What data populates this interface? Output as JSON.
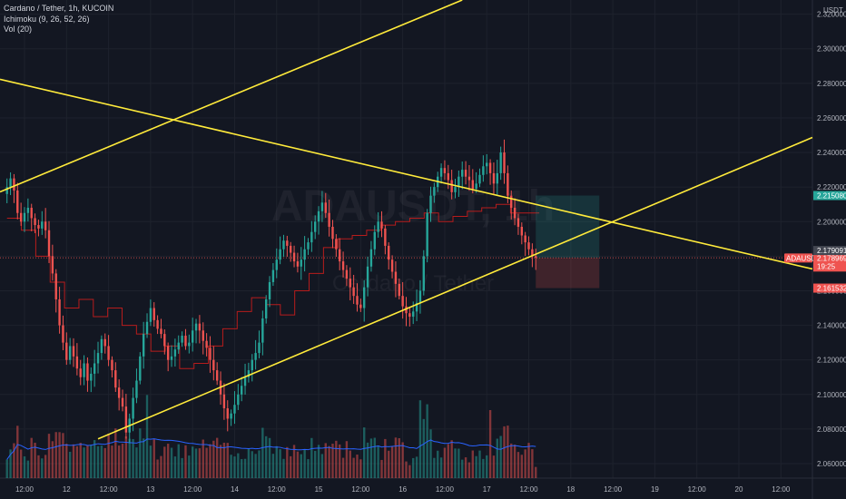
{
  "legend": {
    "title": "Cardano / Tether, 1h, KUCOIN",
    "ichimoku": "Ichimoku (9, 26, 52, 26)",
    "volume": "Vol (20)"
  },
  "watermark": {
    "symbol": "ADAUSDT, 1h",
    "name": "Cardano / Tether"
  },
  "colors": {
    "background": "#131722",
    "up": "#26a69a",
    "down": "#ef5350",
    "trendline": "#ffeb3b",
    "baseline": "#b71c1c",
    "volume_ma": "#2962ff",
    "grid": "#1e222d",
    "axis_text": "#b2b5be"
  },
  "chart_data": {
    "type": "candlestick",
    "symbol": "ADAUSDT",
    "timeframe": "1h",
    "exchange": "KUCOIN",
    "y_axis_unit": "USDT",
    "y_ticks": [
      2.06,
      2.08,
      2.1,
      2.12,
      2.14,
      2.16,
      2.18,
      2.2,
      2.22,
      2.24,
      2.26,
      2.28,
      2.3,
      2.32
    ],
    "y_tick_labels": [
      "2.060000",
      "2.080000",
      "2.100000",
      "2.120000",
      "2.140000",
      "2.160000",
      "2.180000",
      "2.200000",
      "2.220000",
      "2.240000",
      "2.260000",
      "2.280000",
      "2.300000",
      "2.320000"
    ],
    "ylim": [
      2.0516,
      2.3282
    ],
    "x_tick_labels": [
      "12:00",
      "12",
      "12:00",
      "13",
      "12:00",
      "14",
      "12:00",
      "15",
      "12:00",
      "16",
      "12:00",
      "17",
      "12:00",
      "18",
      "12:00",
      "19",
      "12:00",
      "20",
      "12:00"
    ],
    "x_tick_hours": [
      0,
      12,
      24,
      36,
      48,
      60,
      72,
      84,
      96,
      108,
      120,
      132,
      144,
      156,
      168,
      180,
      192,
      204,
      216
    ],
    "xlim_hours": [
      -7,
      225
    ],
    "closes": [
      2.22,
      2.225,
      2.218,
      2.205,
      2.2,
      2.205,
      2.208,
      2.202,
      2.198,
      2.196,
      2.2,
      2.195,
      2.18,
      2.17,
      2.155,
      2.14,
      2.13,
      2.12,
      2.128,
      2.122,
      2.115,
      2.11,
      2.118,
      2.108,
      2.112,
      2.118,
      2.124,
      2.132,
      2.128,
      2.12,
      2.114,
      2.104,
      2.098,
      2.093,
      2.078,
      2.086,
      2.098,
      2.108,
      2.122,
      2.135,
      2.142,
      2.15,
      2.143,
      2.138,
      2.135,
      2.128,
      2.12,
      2.122,
      2.126,
      2.13,
      2.134,
      2.128,
      2.13,
      2.137,
      2.141,
      2.137,
      2.131,
      2.127,
      2.12,
      2.114,
      2.108,
      2.1,
      2.092,
      2.086,
      2.089,
      2.094,
      2.1,
      2.105,
      2.11,
      2.114,
      2.12,
      2.124,
      2.13,
      2.144,
      2.155,
      2.165,
      2.172,
      2.178,
      2.184,
      2.189,
      2.186,
      2.182,
      2.177,
      2.174,
      2.178,
      2.184,
      2.188,
      2.194,
      2.2,
      2.206,
      2.211,
      2.205,
      2.197,
      2.19,
      2.184,
      2.177,
      2.172,
      2.167,
      2.162,
      2.157,
      2.152,
      2.15,
      2.162,
      2.174,
      2.184,
      2.194,
      2.2,
      2.196,
      2.186,
      2.178,
      2.171,
      2.164,
      2.157,
      2.151,
      2.147,
      2.145,
      2.148,
      2.153,
      2.16,
      2.18,
      2.205,
      2.215,
      2.22,
      2.226,
      2.231,
      2.228,
      2.224,
      2.217,
      2.22,
      2.226,
      2.23,
      2.226,
      2.224,
      2.219,
      2.222,
      2.227,
      2.232,
      2.234,
      2.228,
      2.222,
      2.228,
      2.24,
      2.228,
      2.215,
      2.208,
      2.202,
      2.197,
      2.192,
      2.188,
      2.184,
      2.18,
      2.179091
    ],
    "current_price": "2.179091",
    "tags": [
      {
        "label": "ADAUSDT",
        "value": "2.178969",
        "countdown": "19:25",
        "color": "#ef5350"
      },
      {
        "value": "2.215080",
        "color": "#26a69a"
      },
      {
        "value": "2.179091",
        "color": "#434651"
      },
      {
        "value": "2.161532",
        "color": "#ef5350"
      }
    ],
    "trendlines": [
      {
        "name": "upper rising line",
        "from": [
          -7,
          2.2172
        ],
        "to": [
          125,
          2.3282
        ]
      },
      {
        "name": "descending line",
        "from": [
          -7,
          2.2823
        ],
        "to": [
          225,
          2.1726
        ]
      },
      {
        "name": "rising support line",
        "from": [
          21,
          2.0743
        ],
        "to": [
          225,
          2.2487
        ]
      }
    ],
    "baseline_levels": [
      2.202,
      2.195,
      2.18,
      2.165,
      2.15,
      2.155,
      2.145,
      2.15,
      2.14,
      2.135,
      2.125,
      2.128,
      2.115,
      2.118,
      2.128,
      2.138,
      2.148,
      2.156,
      2.152,
      2.146,
      2.16,
      2.17,
      2.185,
      2.19,
      2.192,
      2.195,
      2.198,
      2.2,
      2.202,
      2.205,
      2.2,
      2.203,
      2.206,
      2.208,
      2.21,
      2.205,
      2.205
    ],
    "grid": true
  }
}
